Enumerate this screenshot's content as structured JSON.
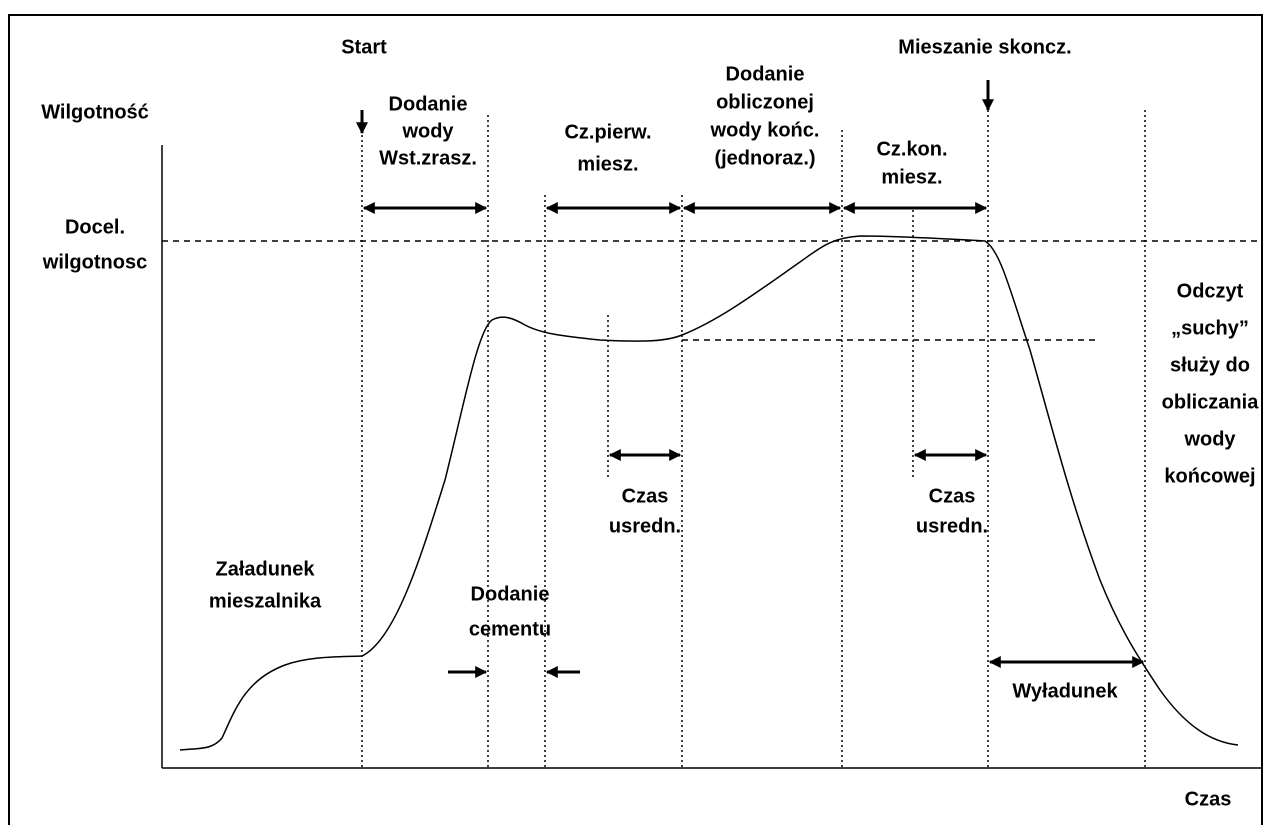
{
  "title_start": "Start",
  "title_end": "Mieszanie skoncz.",
  "y_axis_label": "Wilgotność",
  "x_axis_label": "Czas",
  "target_label": [
    "Docel.",
    "wilgotnosc"
  ],
  "phases": {
    "prewet": [
      "Dodanie",
      "wody",
      "Wst.zrasz."
    ],
    "first_mix": [
      "Cz.pierw.",
      "miesz."
    ],
    "final_water": [
      "Dodanie",
      "obliczonej",
      "wody końc.",
      "(jednoraz.)"
    ],
    "final_mix": [
      "Cz.kon.",
      "miesz."
    ],
    "dry_reading": [
      "Odczyt",
      "„suchy”",
      "służy do",
      "obliczania",
      "wody",
      "końcowej"
    ],
    "average_1": [
      "Czas",
      "usredn."
    ],
    "average_2": [
      "Czas",
      "usredn."
    ],
    "loading": [
      "Załadunek",
      "mieszalnika"
    ],
    "cement": [
      "Dodanie",
      "cementu"
    ],
    "discharge": [
      "Wyładunek"
    ]
  }
}
